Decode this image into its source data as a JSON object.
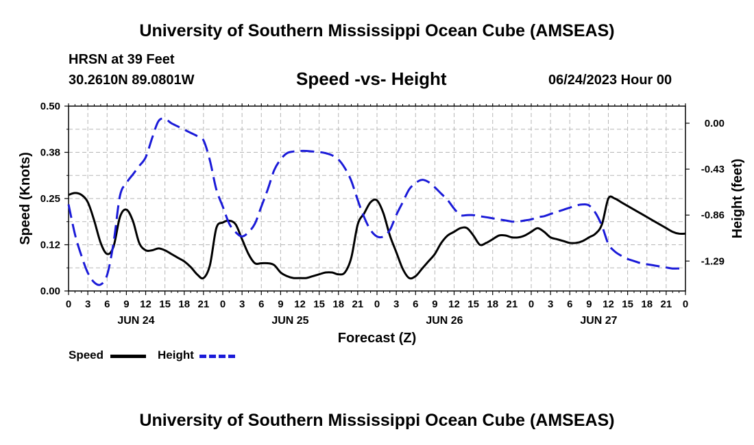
{
  "header": {
    "title": "University of Southern Mississippi Ocean Cube (AMSEAS)",
    "station": "HRSN at 39 Feet",
    "coords": "30.2610N  89.0801W",
    "subtitle": "Speed -vs- Height",
    "datetime": "06/24/2023 Hour 00"
  },
  "legend": {
    "speed_label": "Speed",
    "height_label": "Height",
    "speed_color": "#000000",
    "height_color": "#1a1ad8"
  },
  "footer": {
    "title": "University of Southern Mississippi Ocean Cube (AMSEAS)"
  },
  "chart_data": {
    "type": "line",
    "xlabel": "Forecast (Z)",
    "ylabel_left": "Speed (Knots)",
    "ylabel_right": "Height (feet)",
    "x_range": [
      0,
      96
    ],
    "x_tick_step": 3,
    "x_tick_labels": [
      "0",
      "3",
      "6",
      "9",
      "12",
      "15",
      "18",
      "21",
      "0",
      "3",
      "6",
      "9",
      "12",
      "15",
      "18",
      "21",
      "0",
      "3",
      "6",
      "9",
      "12",
      "15",
      "18",
      "21",
      "0",
      "3",
      "6",
      "9",
      "12",
      "15",
      "18",
      "21",
      "0"
    ],
    "day_labels": [
      {
        "label": "JUN 24",
        "hour": 10.5
      },
      {
        "label": "JUN 25",
        "hour": 34.5
      },
      {
        "label": "JUN 26",
        "hour": 58.5
      },
      {
        "label": "JUN 27",
        "hour": 82.5
      }
    ],
    "ylim_left": [
      0,
      0.5
    ],
    "left_ticks": [
      "0.00",
      "0.12",
      "0.25",
      "0.38",
      "0.50"
    ],
    "ylim_right": [
      -1.57,
      0.16
    ],
    "right_ticks": [
      {
        "label": "0.00",
        "value": 0.0
      },
      {
        "label": "-0.43",
        "value": -0.43
      },
      {
        "label": "-0.86",
        "value": -0.86
      },
      {
        "label": "-1.29",
        "value": -1.29
      }
    ],
    "grid": true,
    "series": [
      {
        "name": "Speed",
        "axis": "left",
        "style": "solid",
        "color": "#000000",
        "x": [
          0,
          1,
          2,
          3,
          4,
          5,
          6,
          7,
          8,
          9,
          10,
          11,
          12,
          13,
          14,
          15,
          16,
          17,
          18,
          19,
          20,
          21,
          22,
          23,
          24,
          25,
          26,
          27,
          28,
          29,
          30,
          31,
          32,
          33,
          34,
          35,
          36,
          37,
          38,
          39,
          40,
          41,
          42,
          43,
          44,
          45,
          46,
          47,
          48,
          49,
          50,
          51,
          52,
          53,
          54,
          55,
          56,
          57,
          58,
          59,
          60,
          61,
          62,
          63,
          64,
          65,
          66,
          67,
          68,
          69,
          70,
          71,
          72,
          73,
          74,
          75,
          76,
          77,
          78,
          79,
          80,
          81,
          82,
          83,
          84,
          85,
          86,
          87,
          88,
          89,
          90,
          91,
          92,
          93,
          94,
          95,
          96
        ],
        "values": [
          0.26,
          0.265,
          0.26,
          0.24,
          0.19,
          0.13,
          0.1,
          0.12,
          0.2,
          0.22,
          0.19,
          0.13,
          0.11,
          0.11,
          0.115,
          0.11,
          0.1,
          0.09,
          0.08,
          0.065,
          0.045,
          0.035,
          0.07,
          0.17,
          0.185,
          0.19,
          0.18,
          0.14,
          0.1,
          0.075,
          0.075,
          0.075,
          0.07,
          0.05,
          0.04,
          0.035,
          0.035,
          0.035,
          0.04,
          0.045,
          0.05,
          0.05,
          0.045,
          0.05,
          0.09,
          0.18,
          0.21,
          0.24,
          0.245,
          0.21,
          0.15,
          0.105,
          0.06,
          0.035,
          0.04,
          0.06,
          0.08,
          0.1,
          0.13,
          0.15,
          0.16,
          0.17,
          0.17,
          0.15,
          0.125,
          0.13,
          0.14,
          0.15,
          0.15,
          0.145,
          0.145,
          0.15,
          0.16,
          0.17,
          0.16,
          0.145,
          0.14,
          0.135,
          0.13,
          0.13,
          0.135,
          0.145,
          0.155,
          0.18,
          0.25,
          0.25,
          0.24,
          0.23,
          0.22,
          0.21,
          0.2,
          0.19,
          0.18,
          0.17,
          0.16,
          0.155,
          0.155
        ]
      },
      {
        "name": "Height",
        "axis": "right",
        "style": "dashed",
        "color": "#1a1ad8",
        "x": [
          0,
          1,
          2,
          3,
          4,
          5,
          6,
          7,
          8,
          9,
          10,
          11,
          12,
          13,
          14,
          15,
          16,
          17,
          18,
          19,
          20,
          21,
          22,
          23,
          24,
          25,
          26,
          27,
          28,
          29,
          30,
          31,
          32,
          33,
          34,
          35,
          36,
          37,
          38,
          39,
          40,
          41,
          42,
          43,
          44,
          45,
          46,
          47,
          48,
          49,
          50,
          51,
          52,
          53,
          54,
          55,
          56,
          57,
          58,
          59,
          60,
          61,
          62,
          63,
          64,
          65,
          66,
          67,
          68,
          69,
          70,
          71,
          72,
          73,
          74,
          75,
          76,
          77,
          78,
          79,
          80,
          81,
          82,
          83,
          84,
          85,
          86,
          87,
          88,
          89,
          90,
          91,
          92,
          93,
          94,
          95,
          96
        ],
        "values": [
          -0.76,
          -1.04,
          -1.24,
          -1.4,
          -1.49,
          -1.51,
          -1.42,
          -1.12,
          -0.68,
          -0.56,
          -0.48,
          -0.4,
          -0.32,
          -0.14,
          0.02,
          0.04,
          0.0,
          -0.03,
          -0.06,
          -0.09,
          -0.12,
          -0.16,
          -0.35,
          -0.62,
          -0.78,
          -0.94,
          -1.02,
          -1.06,
          -1.02,
          -0.94,
          -0.78,
          -0.62,
          -0.44,
          -0.34,
          -0.28,
          -0.265,
          -0.26,
          -0.26,
          -0.265,
          -0.27,
          -0.28,
          -0.3,
          -0.34,
          -0.42,
          -0.54,
          -0.72,
          -0.88,
          -1.0,
          -1.06,
          -1.06,
          -1.0,
          -0.86,
          -0.74,
          -0.62,
          -0.56,
          -0.53,
          -0.55,
          -0.6,
          -0.66,
          -0.72,
          -0.8,
          -0.86,
          -0.86,
          -0.86,
          -0.87,
          -0.88,
          -0.89,
          -0.9,
          -0.91,
          -0.92,
          -0.92,
          -0.91,
          -0.9,
          -0.88,
          -0.87,
          -0.85,
          -0.83,
          -0.81,
          -0.79,
          -0.77,
          -0.76,
          -0.77,
          -0.84,
          -0.96,
          -1.13,
          -1.2,
          -1.24,
          -1.27,
          -1.29,
          -1.31,
          -1.32,
          -1.33,
          -1.34,
          -1.35,
          -1.36,
          -1.36,
          -1.37
        ]
      }
    ]
  }
}
